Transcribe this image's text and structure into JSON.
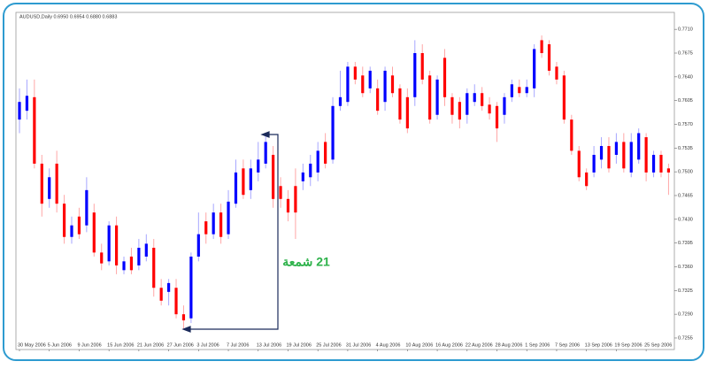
{
  "chart_data": {
    "type": "candlestick",
    "title": "AUDUSD,Daily 0.6950 0.6954 0.6880 0.6883",
    "annotation": "21 شمعة",
    "categories": [
      "30 May 2006",
      null,
      null,
      null,
      "5 Jun 2006",
      null,
      null,
      null,
      "9 Jun 2006",
      null,
      null,
      null,
      "15 Jun 2006",
      null,
      null,
      null,
      "21 Jun 2006",
      null,
      null,
      null,
      "27 Jun 2006",
      null,
      null,
      null,
      "3 Jul 2006",
      null,
      null,
      null,
      "7 Jul 2006",
      null,
      null,
      null,
      "13 Jul 2006",
      null,
      null,
      null,
      "19 Jul 2006",
      null,
      null,
      null,
      "25 Jul 2006",
      null,
      null,
      null,
      "31 Jul 2006",
      null,
      null,
      null,
      "4 Aug 2006",
      null,
      null,
      null,
      "10 Aug 2006",
      null,
      null,
      null,
      "16 Aug 2006",
      null,
      null,
      null,
      "22 Aug 2006",
      null,
      null,
      null,
      "28 Aug 2006",
      null,
      null,
      null,
      "1 Sep 2006",
      null,
      null,
      null,
      "7 Sep 2006",
      null,
      null,
      null,
      "13 Sep 2006",
      null,
      null,
      null,
      "19 Sep 2006",
      null,
      null,
      null,
      "25 Sep 2006",
      null,
      null,
      null
    ],
    "open": [
      0.7577,
      0.759,
      0.761,
      0.7512,
      0.746,
      0.7512,
      0.7453,
      0.7404,
      0.7434,
      0.7421,
      0.744,
      0.7381,
      0.7368,
      0.7421,
      0.7355,
      0.7375,
      0.7362,
      0.7375,
      0.7388,
      0.7329,
      0.7323,
      0.7329,
      0.729,
      0.7284,
      0.7375,
      0.7427,
      0.7408,
      0.744,
      0.7408,
      0.7453,
      0.7505,
      0.7473,
      0.7499,
      0.7512,
      0.7525,
      0.7479,
      0.746,
      0.7479,
      0.7486,
      0.7492,
      0.7499,
      0.7544,
      0.7518,
      0.7597,
      0.7603,
      0.7655,
      0.7642,
      0.7623,
      0.7623,
      0.7603,
      0.7642,
      0.7623,
      0.761,
      0.761,
      0.7675,
      0.7642,
      0.7584,
      0.7668,
      0.761,
      0.7603,
      0.7584,
      0.7603,
      0.7616,
      0.7599,
      0.7597,
      0.7584,
      0.761,
      0.7625,
      0.7616,
      0.7623,
      0.7694,
      0.7688,
      0.7655,
      0.7642,
      0.7577,
      0.7531,
      0.7499,
      0.7499,
      0.7518,
      0.7538,
      0.7525,
      0.7544,
      0.7499,
      0.7518,
      0.7551,
      0.7499,
      0.7525,
      0.7505
    ],
    "high": [
      0.7623,
      0.7636,
      0.7636,
      0.7525,
      0.7505,
      0.7531,
      0.7466,
      0.7434,
      0.7447,
      0.7492,
      0.7453,
      0.7394,
      0.7427,
      0.7434,
      0.7375,
      0.7388,
      0.7401,
      0.7408,
      0.7401,
      0.7342,
      0.7342,
      0.7342,
      0.7303,
      0.7381,
      0.744,
      0.744,
      0.7453,
      0.7453,
      0.7473,
      0.7518,
      0.7518,
      0.7518,
      0.7544,
      0.7557,
      0.7538,
      0.7492,
      0.7473,
      0.7505,
      0.7512,
      0.7525,
      0.7544,
      0.7557,
      0.761,
      0.7649,
      0.7662,
      0.7662,
      0.7655,
      0.7655,
      0.7636,
      0.7655,
      0.7655,
      0.7629,
      0.7623,
      0.7694,
      0.7688,
      0.7649,
      0.7642,
      0.7681,
      0.7616,
      0.761,
      0.7623,
      0.7629,
      0.7625,
      0.761,
      0.7603,
      0.7616,
      0.7636,
      0.7636,
      0.7636,
      0.7688,
      0.7701,
      0.7694,
      0.7662,
      0.7649,
      0.7584,
      0.7538,
      0.7505,
      0.7538,
      0.7551,
      0.7551,
      0.7557,
      0.7557,
      0.7557,
      0.7564,
      0.7557,
      0.7531,
      0.7531,
      0.7512
    ],
    "low": [
      0.7557,
      0.7577,
      0.7505,
      0.7434,
      0.7447,
      0.744,
      0.7394,
      0.7394,
      0.7401,
      0.7411,
      0.7375,
      0.7355,
      0.7362,
      0.7349,
      0.7349,
      0.7349,
      0.7355,
      0.7368,
      0.7316,
      0.7303,
      0.7303,
      0.7284,
      0.7268,
      0.7277,
      0.7368,
      0.7394,
      0.7401,
      0.7394,
      0.7401,
      0.7447,
      0.746,
      0.746,
      0.7486,
      0.7505,
      0.7447,
      0.7447,
      0.7427,
      0.7401,
      0.7473,
      0.7479,
      0.7486,
      0.7505,
      0.7512,
      0.759,
      0.7597,
      0.7629,
      0.761,
      0.7616,
      0.7584,
      0.759,
      0.761,
      0.7571,
      0.7557,
      0.7597,
      0.7629,
      0.7571,
      0.7577,
      0.7597,
      0.7571,
      0.7564,
      0.7571,
      0.7597,
      0.759,
      0.7577,
      0.7544,
      0.7571,
      0.7603,
      0.761,
      0.761,
      0.761,
      0.7668,
      0.7642,
      0.7629,
      0.7571,
      0.7525,
      0.7486,
      0.7473,
      0.7492,
      0.7505,
      0.7499,
      0.7512,
      0.7499,
      0.7492,
      0.7512,
      0.7486,
      0.7492,
      0.7492,
      0.7466
    ],
    "close": [
      0.7603,
      0.7612,
      0.7512,
      0.7453,
      0.7492,
      0.7453,
      0.7404,
      0.7421,
      0.7408,
      0.7473,
      0.7381,
      0.7365,
      0.7421,
      0.7362,
      0.7368,
      0.7355,
      0.7388,
      0.7394,
      0.7329,
      0.731,
      0.7336,
      0.729,
      0.7281,
      0.7375,
      0.7408,
      0.7408,
      0.744,
      0.7404,
      0.7456,
      0.7499,
      0.7466,
      0.7505,
      0.7518,
      0.7544,
      0.746,
      0.746,
      0.744,
      0.744,
      0.7499,
      0.7512,
      0.7531,
      0.7512,
      0.7597,
      0.761,
      0.7655,
      0.7636,
      0.7616,
      0.7649,
      0.759,
      0.7649,
      0.7616,
      0.7577,
      0.7564,
      0.7675,
      0.7636,
      0.7577,
      0.7636,
      0.761,
      0.7584,
      0.7577,
      0.7616,
      0.7616,
      0.7597,
      0.7586,
      0.7564,
      0.761,
      0.7629,
      0.7616,
      0.7625,
      0.7681,
      0.7675,
      0.7649,
      0.7636,
      0.7577,
      0.7531,
      0.7492,
      0.7479,
      0.7525,
      0.7538,
      0.7505,
      0.7544,
      0.7505,
      0.7544,
      0.7557,
      0.7499,
      0.7525,
      0.7499,
      0.7499
    ],
    "up_color": "#0000ff",
    "down_color": "#ff0000",
    "ylim": [
      0.7238,
      0.7735
    ],
    "yticks": [
      0.7255,
      {
        "value": 0.729,
        "label": "0.7290"
      },
      0.7325,
      {
        "value": 0.736,
        "label": "0.7360"
      },
      0.7395,
      {
        "value": 0.743,
        "label": "0.7430"
      },
      0.7465,
      {
        "value": 0.75,
        "label": "0.7500"
      },
      0.7535,
      {
        "value": 0.757,
        "label": "0.7570"
      },
      0.7605,
      {
        "value": 0.764,
        "label": "0.7640"
      },
      0.7675,
      {
        "value": 0.771,
        "label": "0.7710"
      }
    ]
  }
}
